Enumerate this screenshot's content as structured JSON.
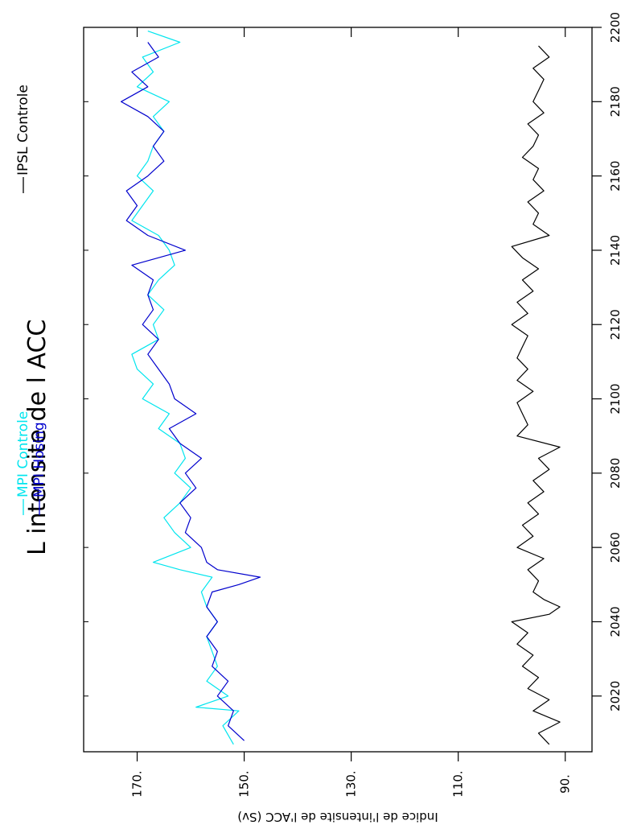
{
  "chart_data": {
    "type": "line",
    "title": "L intensite de l ACC",
    "xlabel": "",
    "ylabel": "Indice de l'intensite de l'ACC (Sv)",
    "xlim": [
      2005,
      2200
    ],
    "ylim": [
      85,
      180
    ],
    "x_ticks": [
      2020,
      2040,
      2060,
      2080,
      2100,
      2120,
      2140,
      2160,
      2180,
      2200
    ],
    "y_ticks": [
      90,
      110,
      130,
      150,
      170
    ],
    "y_tick_labels": [
      "90.",
      "110.",
      "130.",
      "150.",
      "170."
    ],
    "grid": false,
    "orientation": "rotated-90-ccw",
    "series": [
      {
        "name": "MPI Controle",
        "color": "#00e5ee",
        "x": [
          2007,
          2012,
          2016,
          2017,
          2020,
          2024,
          2028,
          2032,
          2036,
          2040,
          2044,
          2048,
          2052,
          2054,
          2056,
          2060,
          2064,
          2068,
          2072,
          2076,
          2080,
          2084,
          2088,
          2092,
          2096,
          2100,
          2104,
          2108,
          2112,
          2116,
          2120,
          2124,
          2128,
          2132,
          2136,
          2140,
          2144,
          2148,
          2152,
          2156,
          2160,
          2164,
          2168,
          2172,
          2176,
          2180,
          2184,
          2188,
          2192,
          2196,
          2199
        ],
        "values": [
          152,
          154,
          151,
          159,
          153,
          157,
          155,
          156,
          157,
          155,
          157,
          158,
          156,
          162,
          167,
          160,
          163,
          165,
          162,
          160,
          163,
          161,
          162,
          166,
          164,
          169,
          167,
          170,
          171,
          166,
          167,
          165,
          168,
          166,
          163,
          164,
          166,
          171,
          169,
          167,
          170,
          168,
          167,
          165,
          167,
          164,
          170,
          167,
          169,
          162,
          168
        ]
      },
      {
        "name": "MPI Hosing",
        "color": "#0000cd",
        "x": [
          2008,
          2012,
          2016,
          2020,
          2024,
          2028,
          2032,
          2036,
          2040,
          2044,
          2048,
          2050,
          2052,
          2054,
          2056,
          2060,
          2064,
          2068,
          2072,
          2076,
          2080,
          2084,
          2088,
          2092,
          2096,
          2100,
          2104,
          2108,
          2112,
          2116,
          2120,
          2124,
          2128,
          2132,
          2136,
          2140,
          2144,
          2148,
          2152,
          2156,
          2160,
          2164,
          2168,
          2172,
          2176,
          2180,
          2184,
          2188,
          2192,
          2196
        ],
        "values": [
          150,
          153,
          152,
          155,
          153,
          156,
          155,
          157,
          155,
          157,
          156,
          151,
          147,
          155,
          157,
          158,
          161,
          160,
          162,
          159,
          161,
          158,
          162,
          164,
          159,
          163,
          164,
          166,
          168,
          166,
          169,
          167,
          168,
          167,
          171,
          161,
          168,
          172,
          170,
          172,
          168,
          165,
          167,
          165,
          168,
          173,
          168,
          171,
          166,
          168
        ]
      },
      {
        "name": "IPSL Controle",
        "color": "#000000",
        "x": [
          2007,
          2010,
          2013,
          2016,
          2019,
          2022,
          2025,
          2028,
          2031,
          2034,
          2037,
          2040,
          2042,
          2044,
          2046,
          2048,
          2051,
          2054,
          2057,
          2060,
          2063,
          2066,
          2069,
          2072,
          2075,
          2078,
          2081,
          2084,
          2087,
          2090,
          2093,
          2096,
          2099,
          2102,
          2105,
          2108,
          2111,
          2114,
          2117,
          2120,
          2123,
          2126,
          2129,
          2132,
          2135,
          2138,
          2141,
          2144,
          2147,
          2150,
          2153,
          2156,
          2159,
          2162,
          2165,
          2168,
          2171,
          2174,
          2177,
          2180,
          2183,
          2186,
          2189,
          2192,
          2195
        ],
        "values": [
          93,
          95,
          91,
          96,
          93,
          97,
          95,
          98,
          96,
          99,
          97,
          100,
          93,
          91,
          94,
          96,
          95,
          97,
          94,
          99,
          96,
          98,
          95,
          97,
          94,
          96,
          93,
          95,
          91,
          99,
          97,
          98,
          99,
          96,
          99,
          97,
          99,
          98,
          97,
          100,
          97,
          99,
          96,
          98,
          95,
          98,
          100,
          93,
          96,
          95,
          97,
          94,
          96,
          95,
          98,
          96,
          95,
          97,
          94,
          96,
          95,
          94,
          96,
          93,
          95
        ]
      }
    ]
  }
}
